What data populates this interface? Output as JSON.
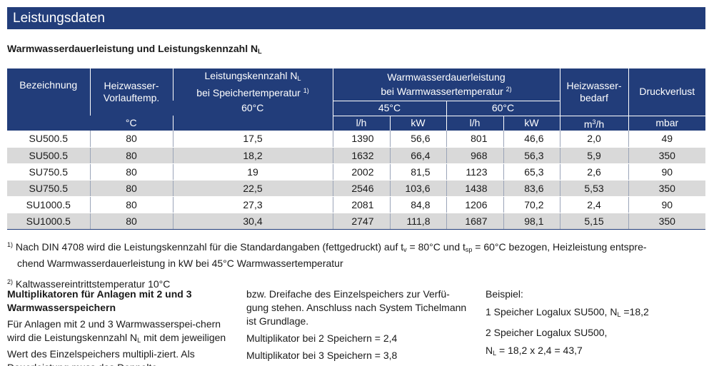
{
  "title": "Leistungsdaten",
  "subtitle": {
    "text": "Warmwasserdauerleistung und Leistungskennzahl N",
    "sub": "L"
  },
  "table": {
    "h_bezeichnung": "Bezeichnung",
    "h_vorlauf_1": "Heizwasser-",
    "h_vorlauf_2": "Vorlauftemp.",
    "h_nl_1": "Leistungskennzahl N",
    "h_nl_1_sub": "L",
    "h_nl_2": "bei Speichertemperatur",
    "h_nl_2_sup": "1)",
    "h_ww_1": "Warmwasserdauerleistung",
    "h_ww_2": "bei Warmwassertemperatur",
    "h_ww_2_sup": "2)",
    "h_bedarf_1": "Heizwasser-",
    "h_bedarf_2": "bedarf",
    "h_druck": "Druckverlust",
    "h_60c": "60°C",
    "h_45c": "45°C",
    "h_60c_b": "60°C",
    "u_temp": "°C",
    "u_lh1": "l/h",
    "u_kw1": "kW",
    "u_lh2": "l/h",
    "u_kw2": "kW",
    "u_m3h_pre": "m",
    "u_m3h_sup": "3",
    "u_m3h_post": "/h",
    "u_mbar": "mbar",
    "rows": [
      [
        "SU500.5",
        "80",
        "17,5",
        "1390",
        "56,6",
        "801",
        "46,6",
        "2,0",
        "49"
      ],
      [
        "SU500.5",
        "80",
        "18,2",
        "1632",
        "66,4",
        "968",
        "56,3",
        "5,9",
        "350"
      ],
      [
        "SU750.5",
        "80",
        "19",
        "2002",
        "81,5",
        "1123",
        "65,3",
        "2,6",
        "90"
      ],
      [
        "SU750.5",
        "80",
        "22,5",
        "2546",
        "103,6",
        "1438",
        "83,6",
        "5,53",
        "350"
      ],
      [
        "SU1000.5",
        "80",
        "27,3",
        "2081",
        "84,8",
        "1206",
        "70,2",
        "2,4",
        "90"
      ],
      [
        "SU1000.5",
        "80",
        "30,4",
        "2747",
        "111,8",
        "1687",
        "98,1",
        "5,15",
        "350"
      ]
    ]
  },
  "footnotes": {
    "fn1_mark": "1)",
    "fn1_a": "Nach DIN 4708 wird die Leistungskennzahl für die Standardangaben (fettgedruckt) auf t",
    "fn1_a_sub": "v",
    "fn1_b": " = 80°C und t",
    "fn1_b_sub": "sp",
    "fn1_c": " = 60°C bezogen, Heizleistung entspre-",
    "fn1_line2": "chend Warmwasserdauerleistung in kW bei 45°C Warmwassertemperatur",
    "fn2_mark": "2)",
    "fn2": "Kaltwassereintrittstemperatur 10°C"
  },
  "col1": {
    "heading": "Multiplikatoren für Anlagen mit 2 und 3 Warmwasserspeichern",
    "p_a": "Für Anlagen mit 2 und 3 Warmwasserspei-chern wird die Leistungskennzahl N",
    "p_a_sub": "L",
    "p_b": " mit dem jeweiligen Wert des Einzelspeichers multipli-ziert. Als Dauerleistung muss das Doppelte"
  },
  "col2": {
    "p1": "bzw. Dreifache des Einzelspeichers zur Verfü-gung stehen. Anschluss nach System Tichelmann ist Grundlage.",
    "p2": "Multiplikator bei 2 Speichern = 2,4",
    "p3": "Multiplikator bei 3 Speichern = 3,8"
  },
  "col3": {
    "p1": "Beispiel:",
    "p2_a": "1 Speicher Logalux SU500, N",
    "p2_sub": "L",
    "p2_b": " =18,2",
    "p3": "2 Speicher Logalux SU500,",
    "p4_a": "N",
    "p4_sub": "L",
    "p4_b": " = 18,2 x 2,4 = 43,7"
  }
}
